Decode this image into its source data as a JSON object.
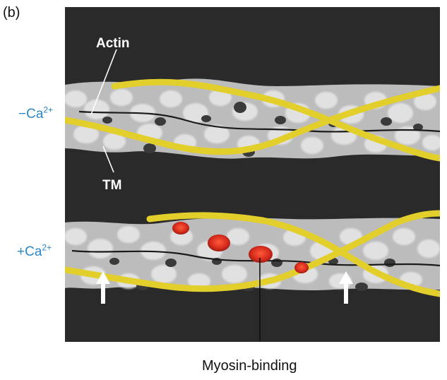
{
  "panel_letter": "(b)",
  "conditions": {
    "minus": {
      "sign": "−Ca",
      "sup": "2+"
    },
    "plus": {
      "sign": "+Ca",
      "sup": "2+"
    }
  },
  "overlay_labels": {
    "actin": "Actin",
    "tm": "TM"
  },
  "caption": "Myosin-binding",
  "colors": {
    "background": "#2a2a2a",
    "actin": "#cfcfcf",
    "tropomyosin": "#e2cf2c",
    "myosin_sites": "#d42a1c",
    "label_blue": "#2b86c5",
    "arrow": "#ffffff"
  }
}
